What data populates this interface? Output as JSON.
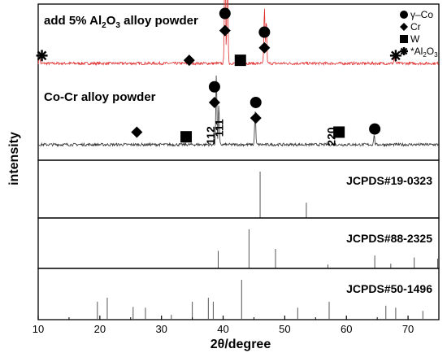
{
  "chart_data": {
    "type": "line",
    "xlabel": "2θ/degree",
    "ylabel": "intensity",
    "xlim": [
      10,
      75
    ],
    "xticks": [
      10,
      20,
      30,
      40,
      50,
      60,
      70
    ],
    "panels": [
      {
        "kind": "xrd-patterns",
        "series": [
          {
            "name": "add 5% Al2O3 alloy powder",
            "color": "#e03030",
            "baseline": 0.62,
            "peaks": [
              {
                "x": 10.2,
                "h": 0.05
              },
              {
                "x": 40.3,
                "h": 0.85
              },
              {
                "x": 40.7,
                "h": 0.65
              },
              {
                "x": 46.7,
                "h": 0.35
              },
              {
                "x": 47.0,
                "h": 0.28
              },
              {
                "x": 67.8,
                "h": 0.04
              }
            ]
          },
          {
            "name": "Co-Cr alloy powder",
            "color": "#333333",
            "baseline": 0.1,
            "peaks": [
              {
                "x": 38.9,
                "h": 0.45
              },
              {
                "x": 39.3,
                "h": 0.25
              },
              {
                "x": 45.2,
                "h": 0.22
              },
              {
                "x": 64.5,
                "h": 0.06
              }
            ]
          }
        ],
        "title_labels": [
          {
            "main": "add 5% Al",
            "sub": "2",
            "tail": "O",
            "sub2": "3",
            "end": " alloy powder"
          },
          {
            "main": "Co-Cr alloy powder"
          }
        ],
        "peak_labels": [
          "111",
          "112",
          "220"
        ],
        "markers": [
          {
            "x": 40.3,
            "y": 0.94,
            "shape": "circle"
          },
          {
            "x": 46.7,
            "y": 0.82,
            "shape": "circle"
          },
          {
            "x": 40.3,
            "y": 0.83,
            "shape": "diamond"
          },
          {
            "x": 46.7,
            "y": 0.72,
            "shape": "diamond"
          },
          {
            "x": 34.5,
            "y": 0.64,
            "shape": "diamond"
          },
          {
            "x": 42.8,
            "y": 0.64,
            "shape": "square"
          },
          {
            "x": 10.6,
            "y": 0.67,
            "shape": "asterisk"
          },
          {
            "x": 68.0,
            "y": 0.67,
            "shape": "asterisk"
          },
          {
            "x": 38.6,
            "y": 0.47,
            "shape": "circle"
          },
          {
            "x": 45.3,
            "y": 0.37,
            "shape": "circle"
          },
          {
            "x": 38.6,
            "y": 0.37,
            "shape": "diamond"
          },
          {
            "x": 45.3,
            "y": 0.27,
            "shape": "diamond"
          },
          {
            "x": 26.0,
            "y": 0.18,
            "shape": "diamond"
          },
          {
            "x": 34.0,
            "y": 0.15,
            "shape": "square"
          },
          {
            "x": 58.8,
            "y": 0.18,
            "shape": "square"
          },
          {
            "x": 64.6,
            "y": 0.2,
            "shape": "circle"
          }
        ],
        "legend": [
          {
            "shape": "circle",
            "label": "γ–Co"
          },
          {
            "shape": "diamond",
            "label": "Cr"
          },
          {
            "shape": "square",
            "label": "W"
          },
          {
            "shape": "asterisk",
            "label": "*Al",
            "sub": "2",
            "tail": "O",
            "sub2": "3"
          }
        ]
      },
      {
        "kind": "reference",
        "label": "JCPDS#19-0323",
        "lines": [
          {
            "x": 46.0,
            "h": 1.0
          },
          {
            "x": 53.5,
            "h": 0.33
          }
        ]
      },
      {
        "kind": "reference",
        "label": "JCPDS#88-2325",
        "lines": [
          {
            "x": 39.2,
            "h": 0.45
          },
          {
            "x": 44.2,
            "h": 1.0
          },
          {
            "x": 48.5,
            "h": 0.5
          },
          {
            "x": 57.0,
            "h": 0.1
          },
          {
            "x": 64.6,
            "h": 0.33
          },
          {
            "x": 67.2,
            "h": 0.12
          },
          {
            "x": 71.0,
            "h": 0.28
          },
          {
            "x": 74.8,
            "h": 0.25
          }
        ]
      },
      {
        "kind": "reference",
        "label": "JCPDS#50-1496",
        "lines": [
          {
            "x": 19.6,
            "h": 0.45
          },
          {
            "x": 21.2,
            "h": 0.55
          },
          {
            "x": 25.4,
            "h": 0.32
          },
          {
            "x": 27.4,
            "h": 0.3
          },
          {
            "x": 31.6,
            "h": 0.12
          },
          {
            "x": 35.0,
            "h": 0.45
          },
          {
            "x": 37.6,
            "h": 0.55
          },
          {
            "x": 38.4,
            "h": 0.45
          },
          {
            "x": 43.0,
            "h": 1.0
          },
          {
            "x": 52.1,
            "h": 0.3
          },
          {
            "x": 57.2,
            "h": 0.45
          },
          {
            "x": 66.4,
            "h": 0.35
          },
          {
            "x": 68.0,
            "h": 0.3
          },
          {
            "x": 72.4,
            "h": 0.22
          }
        ]
      }
    ]
  }
}
